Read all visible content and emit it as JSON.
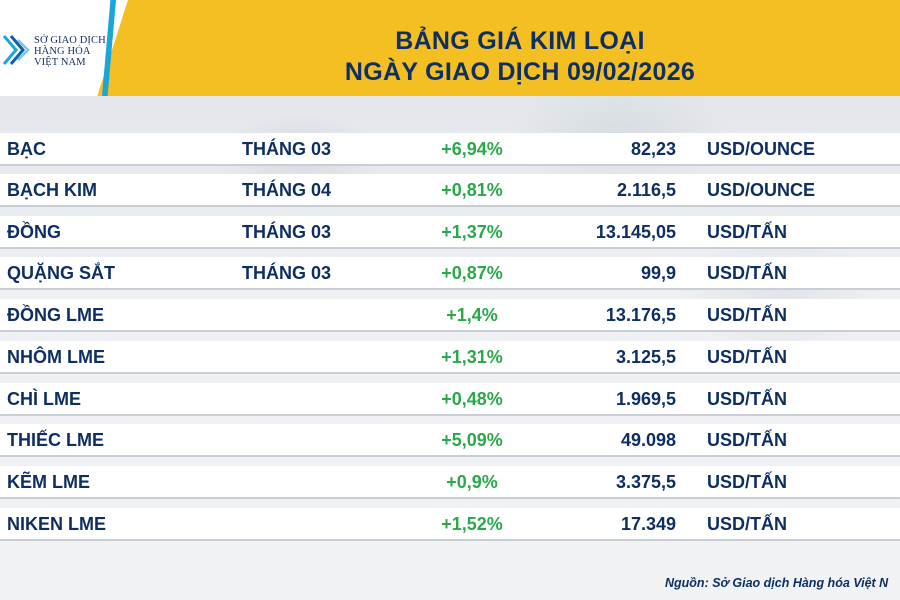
{
  "header": {
    "logo_lines": [
      "SỞ GIAO DỊCH",
      "HÀNG HÓA",
      "VIỆT NAM"
    ],
    "title_line1": "BẢNG GIÁ KIM LOẠI",
    "title_line2": "NGÀY GIAO DỊCH 09/02/2026",
    "accent_color": "#f3bf22",
    "stripe_color": "#1aa6d9"
  },
  "table": {
    "rows": [
      {
        "name": "BẠC",
        "month": "THÁNG 03",
        "change": "+6,94%",
        "price": "82,23",
        "unit": "USD/OUNCE"
      },
      {
        "name": "BẠCH KIM",
        "month": "THÁNG 04",
        "change": "+0,81%",
        "price": "2.116,5",
        "unit": "USD/OUNCE"
      },
      {
        "name": "ĐỒNG",
        "month": "THÁNG 03",
        "change": "+1,37%",
        "price": "13.145,05",
        "unit": "USD/TẤN"
      },
      {
        "name": "QUẶNG SẮT",
        "month": "THÁNG 03",
        "change": "+0,87%",
        "price": "99,9",
        "unit": "USD/TẤN"
      },
      {
        "name": "ĐỒNG LME",
        "month": "",
        "change": "+1,4%",
        "price": "13.176,5",
        "unit": "USD/TẤN"
      },
      {
        "name": "NHÔM LME",
        "month": "",
        "change": "+1,31%",
        "price": "3.125,5",
        "unit": "USD/TẤN"
      },
      {
        "name": "CHÌ LME",
        "month": "",
        "change": "+0,48%",
        "price": "1.969,5",
        "unit": "USD/TẤN"
      },
      {
        "name": "THIẾC LME",
        "month": "",
        "change": "+5,09%",
        "price": "49.098",
        "unit": "USD/TẤN"
      },
      {
        "name": "KẼM LME",
        "month": "",
        "change": "+0,9%",
        "price": "3.375,5",
        "unit": "USD/TẤN"
      },
      {
        "name": "NIKEN LME",
        "month": "",
        "change": "+1,52%",
        "price": "17.349",
        "unit": "USD/TẤN"
      }
    ],
    "positive_color": "#2aa84a"
  },
  "footer": {
    "source": "Nguồn: Sở Giao dịch Hàng hóa Việt N"
  }
}
